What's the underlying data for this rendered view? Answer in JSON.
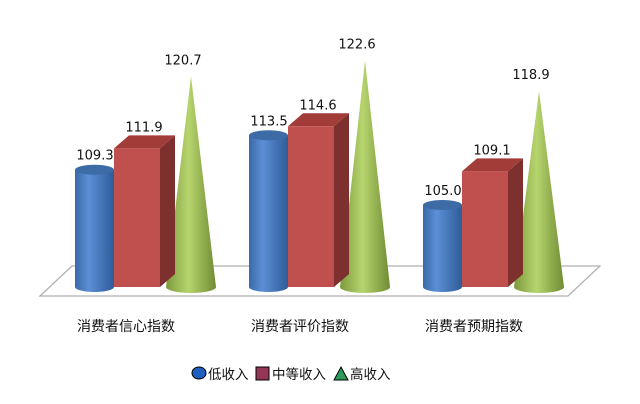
{
  "chart_data": {
    "type": "bar",
    "style": "3d",
    "categories": [
      "消费者信心指数",
      "消费者评价指数",
      "消费者预期指数"
    ],
    "series": [
      {
        "name": "低收入",
        "shape": "cylinder",
        "color": "#4a7ebf",
        "values": [
          109.3,
          113.5,
          105.0
        ]
      },
      {
        "name": "中等收入",
        "shape": "box",
        "color": "#c0504d",
        "values": [
          111.9,
          114.6,
          109.1
        ]
      },
      {
        "name": "高收入",
        "shape": "cone",
        "color": "#9bbb59",
        "values": [
          120.7,
          122.6,
          118.9
        ]
      }
    ],
    "title": "",
    "xlabel": "",
    "ylabel": "",
    "ylim": [
      95,
      125
    ],
    "grid": false,
    "legend": "bottom",
    "legend_colors": {
      "低收入": "#1f5fbf",
      "中等收入": "#953656",
      "高收入": "#2e9a5a"
    }
  }
}
